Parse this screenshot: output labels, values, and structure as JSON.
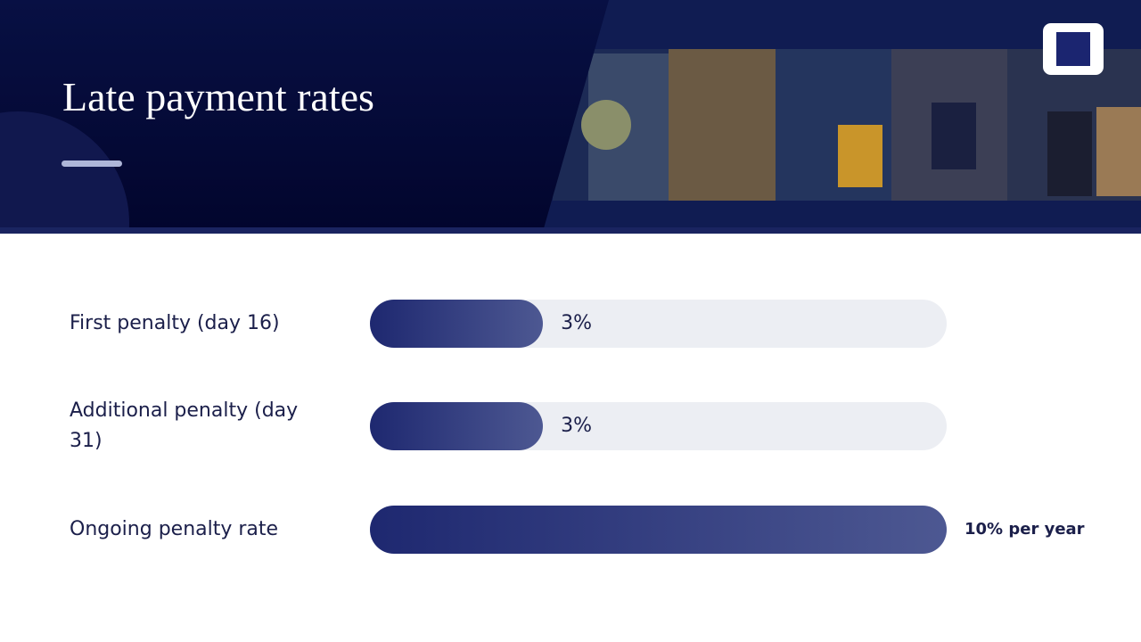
{
  "chart_data": {
    "type": "bar",
    "title": "Late payment rates",
    "categories": [
      "First penalty (day 16)",
      "Additional penalty (day 31)",
      "Ongoing penalty rate"
    ],
    "values": [
      3,
      3,
      10
    ],
    "value_labels": [
      "3%",
      "3%",
      "10% per year"
    ],
    "xlim": [
      0,
      10
    ],
    "color": "#1e2870"
  }
}
